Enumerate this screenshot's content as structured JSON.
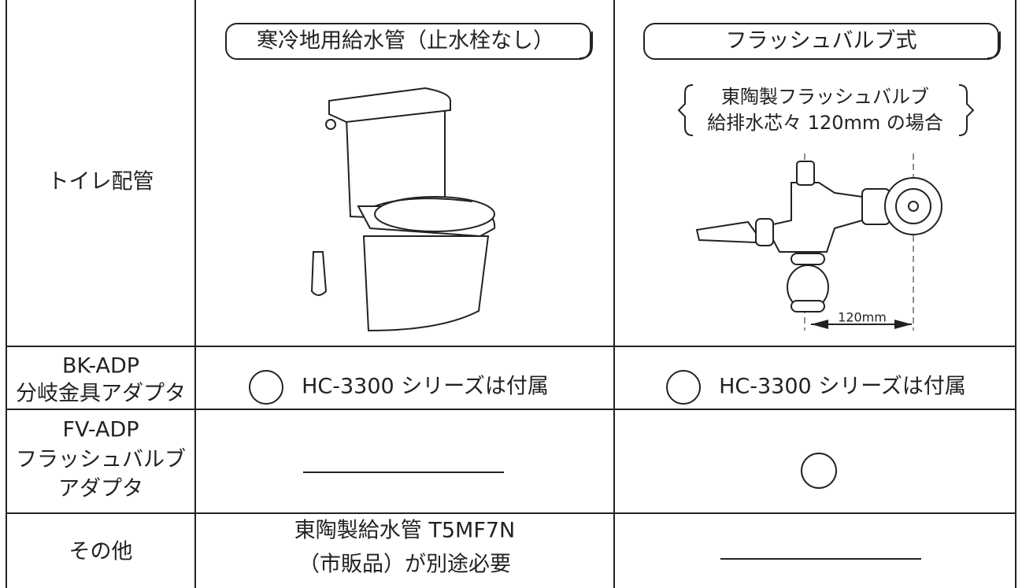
{
  "table": {
    "header_row": {
      "label": "トイレ配管",
      "cold_region_title": "寒冷地用給水管（止水栓なし）",
      "flush_valve_title": "フラッシュバルブ式",
      "flush_valve_note": [
        "東陶製フラッシュバルブ",
        "給排水芯々 120mm の場合"
      ],
      "flush_valve_dimension": "120mm"
    },
    "rows": [
      {
        "label": [
          "BK-ADP",
          "分岐金具アダプタ"
        ],
        "cold_region": "HC-3300 シリーズは付属",
        "flush_valve": "HC-3300 シリーズは付属"
      },
      {
        "label": [
          "FV-ADP",
          "フラッシュバルブ",
          "アダプタ"
        ]
      },
      {
        "label": [
          "その他"
        ],
        "cold_region": [
          "東陶製給水管 T5MF7N",
          "（市販品）が別途必要"
        ]
      }
    ]
  }
}
